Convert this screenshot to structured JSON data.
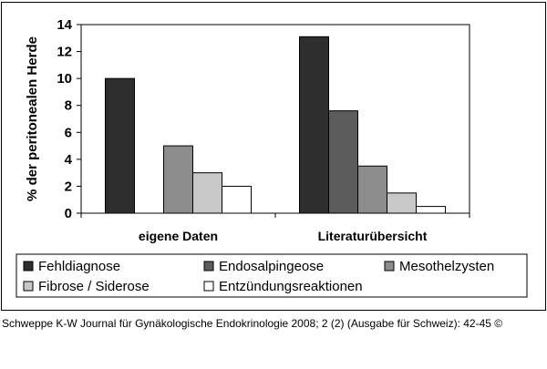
{
  "chart_data": {
    "type": "bar",
    "title": "",
    "xlabel": "",
    "ylabel": "% der peritonealen Herde",
    "ylim": [
      0,
      14
    ],
    "yticks": [
      "0",
      "2",
      "4",
      "6",
      "8",
      "10",
      "12",
      "14"
    ],
    "categories": [
      "eigene Daten",
      "Literaturübersicht"
    ],
    "series": [
      {
        "name": "Fehldiagnose",
        "color": "#2e2e2e",
        "values": [
          10,
          13.1
        ]
      },
      {
        "name": "Endosalpingeose",
        "color": "#5c5c5c",
        "values": [
          0,
          7.6
        ]
      },
      {
        "name": "Mesothelzysten",
        "color": "#8c8c8c",
        "values": [
          5,
          3.5
        ]
      },
      {
        "name": "Fibrose / Siderose",
        "color": "#c8c8c8",
        "values": [
          3,
          1.5
        ]
      },
      {
        "name": "Entzündungsreaktionen",
        "color": "#ffffff",
        "values": [
          2,
          0.5
        ]
      }
    ],
    "legend_position": "bottom",
    "grid": false,
    "plot_background": "#ffffff"
  },
  "caption": "Schweppe K-W Journal für Gynäkologische Endokrinologie 2008; 2 (2) (Ausgabe für Schweiz): 42-45 ©"
}
